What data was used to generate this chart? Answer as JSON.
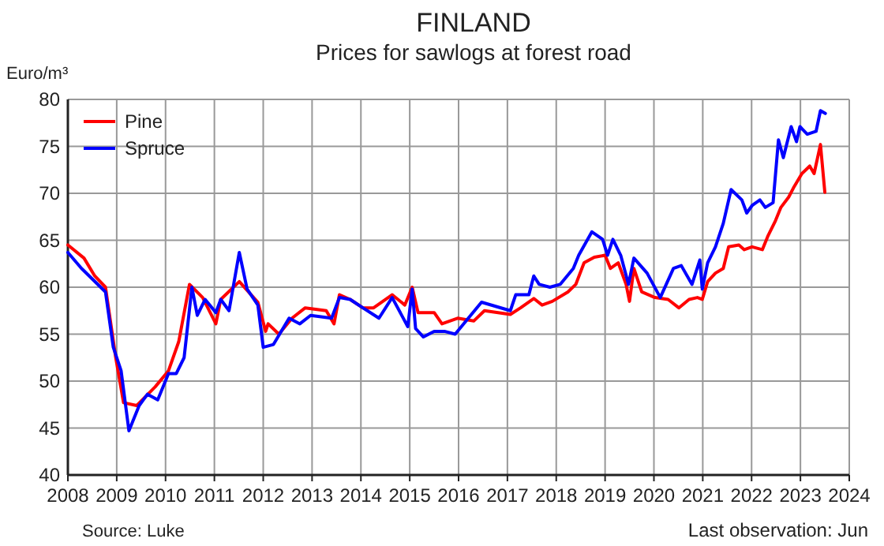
{
  "chart_data": {
    "type": "line",
    "title": "FINLAND",
    "subtitle": "Prices for sawlogs at forest road",
    "ylabel": "Euro/m³",
    "annotations": [
      "Source: Luke",
      "Last observation: Jun"
    ],
    "xlim": [
      2008,
      2024
    ],
    "xticks": [
      2008,
      2009,
      2010,
      2011,
      2012,
      2013,
      2014,
      2015,
      2016,
      2017,
      2018,
      2019,
      2020,
      2021,
      2022,
      2023,
      2024
    ],
    "ylim": [
      40,
      80
    ],
    "yticks": [
      40,
      45,
      50,
      55,
      60,
      65,
      70,
      75,
      80
    ],
    "grid": true,
    "legend": "top left",
    "line_style": "solid",
    "series": [
      {
        "name": "Pine",
        "color": "#ff0000",
        "x": [
          2008,
          2008.33,
          2008.55,
          2008.77,
          2008.98,
          2009.14,
          2009.41,
          2009.79,
          2010.06,
          2010.27,
          2010.49,
          2010.76,
          2011.03,
          2011.13,
          2011.51,
          2011.89,
          2012.05,
          2012.1,
          2012.32,
          2012.59,
          2012.86,
          2013.29,
          2013.45,
          2013.56,
          2013.78,
          2014.04,
          2014.26,
          2014.64,
          2014.9,
          2015.05,
          2015.17,
          2015.5,
          2015.66,
          2015.98,
          2016.31,
          2016.53,
          2017.06,
          2017.27,
          2017.54,
          2017.71,
          2017.92,
          2018.24,
          2018.4,
          2018.57,
          2018.78,
          2019.0,
          2019.11,
          2019.27,
          2019.43,
          2019.5,
          2019.59,
          2019.75,
          2020.02,
          2020.29,
          2020.51,
          2020.72,
          2020.89,
          2020.99,
          2021.1,
          2021.26,
          2021.42,
          2021.53,
          2021.74,
          2021.85,
          2022.01,
          2022.22,
          2022.33,
          2022.49,
          2022.6,
          2022.76,
          2022.87,
          2023.03,
          2023.19,
          2023.28,
          2023.41,
          2023.5
        ],
        "values": [
          64.5,
          63.1,
          61.2,
          60.0,
          52.5,
          47.7,
          47.4,
          49.4,
          51.1,
          54.2,
          60.3,
          58.9,
          56.1,
          58.7,
          60.6,
          58.4,
          55.3,
          56.1,
          55.0,
          56.7,
          57.8,
          57.5,
          56.1,
          59.2,
          58.7,
          57.8,
          57.8,
          59.2,
          58.1,
          60.0,
          57.3,
          57.3,
          56.1,
          56.7,
          56.4,
          57.5,
          57.1,
          57.8,
          58.8,
          58.1,
          58.5,
          59.5,
          60.3,
          62.6,
          63.2,
          63.4,
          62.0,
          62.6,
          60.3,
          58.5,
          62.0,
          59.5,
          58.9,
          58.7,
          57.8,
          58.7,
          58.9,
          58.7,
          60.6,
          61.5,
          62.0,
          64.3,
          64.5,
          64.0,
          64.3,
          64.0,
          65.4,
          67.1,
          68.5,
          69.6,
          70.7,
          72.1,
          72.9,
          72.1,
          75.2,
          70.1
        ]
      },
      {
        "name": "Spruce",
        "color": "#0000ff",
        "x": [
          2008,
          2008.28,
          2008.77,
          2008.93,
          2009.09,
          2009.25,
          2009.46,
          2009.63,
          2009.84,
          2010.06,
          2010.22,
          2010.38,
          2010.54,
          2010.65,
          2010.81,
          2011.03,
          2011.13,
          2011.3,
          2011.51,
          2011.67,
          2011.89,
          2012.0,
          2012.21,
          2012.53,
          2012.75,
          2012.97,
          2013.4,
          2013.56,
          2013.78,
          2014.04,
          2014.37,
          2014.64,
          2014.96,
          2015.05,
          2015.12,
          2015.28,
          2015.5,
          2015.71,
          2015.93,
          2016.2,
          2016.47,
          2017.06,
          2017.17,
          2017.44,
          2017.54,
          2017.65,
          2017.87,
          2018.08,
          2018.35,
          2018.46,
          2018.73,
          2018.95,
          2019.05,
          2019.16,
          2019.32,
          2019.48,
          2019.59,
          2019.86,
          2020.13,
          2020.4,
          2020.56,
          2020.78,
          2020.94,
          2020.99,
          2021.1,
          2021.26,
          2021.42,
          2021.58,
          2021.8,
          2021.9,
          2022.01,
          2022.17,
          2022.28,
          2022.44,
          2022.55,
          2022.65,
          2022.81,
          2022.92,
          2022.99,
          2023.14,
          2023.32,
          2023.41,
          2023.51
        ],
        "values": [
          63.7,
          62.0,
          59.5,
          53.6,
          51.1,
          44.7,
          47.4,
          48.6,
          48.0,
          50.8,
          50.8,
          52.5,
          60.0,
          57.0,
          58.7,
          57.3,
          58.7,
          57.5,
          63.7,
          59.8,
          58.1,
          53.6,
          53.9,
          56.7,
          56.1,
          57.0,
          56.7,
          58.9,
          58.7,
          57.8,
          56.7,
          58.9,
          55.8,
          59.8,
          55.6,
          54.7,
          55.3,
          55.3,
          55.0,
          56.7,
          58.4,
          57.5,
          59.2,
          59.2,
          61.2,
          60.3,
          60.0,
          60.3,
          62.0,
          63.4,
          65.9,
          65.1,
          63.4,
          65.1,
          63.4,
          60.3,
          63.1,
          61.5,
          58.9,
          62.0,
          62.3,
          60.3,
          62.9,
          59.8,
          62.6,
          64.3,
          66.8,
          70.4,
          69.3,
          67.9,
          68.7,
          69.3,
          68.5,
          69.0,
          75.7,
          73.8,
          77.1,
          75.5,
          77.1,
          76.3,
          76.6,
          78.8,
          78.5
        ]
      }
    ]
  }
}
